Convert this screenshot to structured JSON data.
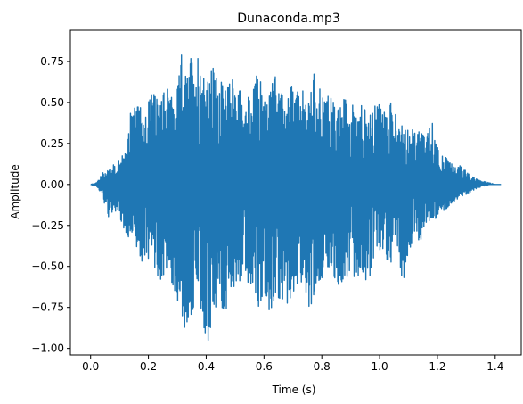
{
  "chart_data": {
    "type": "line",
    "title": "Dunaconda.mp3",
    "xlabel": "Time (s)",
    "ylabel": "Amplitude",
    "xlim": [
      -0.07,
      1.49
    ],
    "ylim": [
      -1.04,
      0.94
    ],
    "x_ticks": [
      0.0,
      0.2,
      0.4,
      0.6,
      0.8,
      1.0,
      1.2,
      1.4
    ],
    "x_tick_labels": [
      "0.0",
      "0.2",
      "0.4",
      "0.6",
      "0.8",
      "1.0",
      "1.2",
      "1.4"
    ],
    "y_ticks": [
      -1.0,
      -0.75,
      -0.5,
      -0.25,
      0.0,
      0.25,
      0.5,
      0.75
    ],
    "y_tick_labels": [
      "−1.00",
      "−0.75",
      "−0.50",
      "−0.25",
      "0.00",
      "0.25",
      "0.50",
      "0.75"
    ],
    "grid": false,
    "line_color": "#1f77b4",
    "series": [
      {
        "x": [
          0.0,
          0.02,
          0.04,
          0.06,
          0.08,
          0.1,
          0.12,
          0.14,
          0.16,
          0.18,
          0.2,
          0.22,
          0.24,
          0.26,
          0.28,
          0.3,
          0.32,
          0.33,
          0.34,
          0.36,
          0.38,
          0.4,
          0.41,
          0.42,
          0.44,
          0.46,
          0.48,
          0.5,
          0.52,
          0.54,
          0.56,
          0.58,
          0.6,
          0.62,
          0.64,
          0.66,
          0.68,
          0.7,
          0.72,
          0.74,
          0.76,
          0.78,
          0.8,
          0.82,
          0.84,
          0.86,
          0.88,
          0.9,
          0.92,
          0.94,
          0.96,
          0.98,
          1.0,
          1.02,
          1.04,
          1.06,
          1.08,
          1.1,
          1.12,
          1.14,
          1.16,
          1.18,
          1.2,
          1.22,
          1.24,
          1.26,
          1.28,
          1.3,
          1.32,
          1.34,
          1.36,
          1.38,
          1.4,
          1.42
        ],
        "upper": [
          0.0,
          0.01,
          0.07,
          0.1,
          0.12,
          0.15,
          0.2,
          0.46,
          0.48,
          0.46,
          0.53,
          0.56,
          0.47,
          0.6,
          0.53,
          0.58,
          0.88,
          0.65,
          0.73,
          0.84,
          0.8,
          0.71,
          0.61,
          0.72,
          0.66,
          0.6,
          0.61,
          0.66,
          0.58,
          0.53,
          0.56,
          0.72,
          0.56,
          0.58,
          0.66,
          0.56,
          0.52,
          0.62,
          0.55,
          0.58,
          0.54,
          0.79,
          0.52,
          0.56,
          0.5,
          0.46,
          0.53,
          0.48,
          0.54,
          0.5,
          0.4,
          0.47,
          0.52,
          0.45,
          0.5,
          0.4,
          0.35,
          0.36,
          0.32,
          0.32,
          0.28,
          0.4,
          0.25,
          0.18,
          0.15,
          0.1,
          0.12,
          0.08,
          0.05,
          0.03,
          0.02,
          0.01,
          0.0,
          0.0
        ],
        "lower": [
          0.0,
          -0.01,
          -0.06,
          -0.2,
          -0.16,
          -0.19,
          -0.34,
          -0.36,
          -0.38,
          -0.48,
          -0.45,
          -0.52,
          -0.6,
          -0.52,
          -0.63,
          -0.7,
          -0.86,
          -0.88,
          -0.86,
          -0.72,
          -0.78,
          -0.93,
          -0.96,
          -0.78,
          -0.73,
          -0.76,
          -0.78,
          -0.62,
          -0.58,
          -0.62,
          -0.6,
          -0.77,
          -0.64,
          -0.78,
          -0.68,
          -0.7,
          -0.73,
          -0.66,
          -0.59,
          -0.61,
          -0.78,
          -0.6,
          -0.57,
          -0.5,
          -0.55,
          -0.63,
          -0.55,
          -0.58,
          -0.56,
          -0.55,
          -0.6,
          -0.48,
          -0.45,
          -0.45,
          -0.48,
          -0.4,
          -0.6,
          -0.45,
          -0.3,
          -0.35,
          -0.25,
          -0.2,
          -0.22,
          -0.17,
          -0.13,
          -0.1,
          -0.08,
          -0.06,
          -0.04,
          -0.02,
          -0.01,
          0.0,
          0.0,
          0.0
        ]
      }
    ]
  }
}
